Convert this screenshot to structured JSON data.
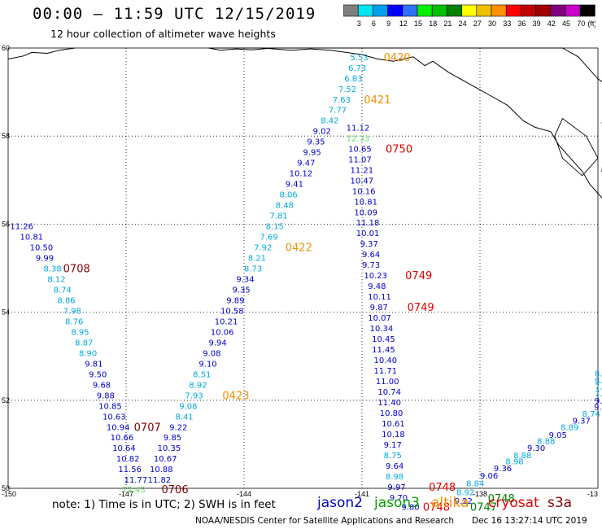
{
  "header": {
    "title": "00:00 – 11:59 UTC 12/15/2019",
    "subtitle": "12 hour collection of altimeter wave heights"
  },
  "colorbar": {
    "labels": [
      "3",
      "6",
      "9",
      "12",
      "15",
      "18",
      "21",
      "24",
      "27",
      "30",
      "33",
      "36",
      "39",
      "42",
      "45",
      "70"
    ],
    "unit": "(ft)",
    "colors": [
      "#808080",
      "#00e5ee",
      "#00a0f0",
      "#0000ff",
      "#3070ff",
      "#00f000",
      "#00c000",
      "#008000",
      "#ffff00",
      "#f0c000",
      "#ff9000",
      "#ff0000",
      "#c00000",
      "#a00000",
      "#800080",
      "#c800c8",
      "#000000"
    ]
  },
  "map": {
    "lat_labels": [
      "60",
      "58",
      "56",
      "54",
      "52",
      "50"
    ],
    "lon_labels": [
      "-150",
      "-147",
      "-144",
      "-141",
      "-138",
      "-13"
    ],
    "lon_min": -150,
    "lon_max": -135,
    "lat_min": 50,
    "lat_max": 60,
    "grid_lons": [
      -147,
      -144,
      -141,
      -138
    ],
    "grid_lats": [
      58,
      56,
      54,
      52
    ],
    "satellite_colors": {
      "jason2": "#0000c8",
      "jason3": "#00a000",
      "altika": "#f09000",
      "cryosat": "#e00000",
      "s3a": "#800000",
      "s3a_light": "#00b0e0",
      "j3_light": "#60e060"
    }
  },
  "annotations": [
    {
      "v": "11.26",
      "c": "#0000c8",
      "lon": -149.95,
      "lat": 55.96
    },
    {
      "v": "10.81",
      "c": "#0000c8",
      "lon": -149.7,
      "lat": 55.72
    },
    {
      "v": "10.50",
      "c": "#0000c8",
      "lon": -149.45,
      "lat": 55.48
    },
    {
      "v": "9.99",
      "c": "#0000c8",
      "lon": -149.3,
      "lat": 55.24
    },
    {
      "v": "8.38",
      "c": "#00a8e0",
      "lon": -149.1,
      "lat": 55.0
    },
    {
      "v": "8.12",
      "c": "#00a8e0",
      "lon": -149.0,
      "lat": 54.76
    },
    {
      "v": "8.74",
      "c": "#00a8e0",
      "lon": -148.85,
      "lat": 54.52
    },
    {
      "v": "8.86",
      "c": "#00a8e0",
      "lon": -148.75,
      "lat": 54.28
    },
    {
      "v": "7.98",
      "c": "#00a8e0",
      "lon": -148.6,
      "lat": 54.04
    },
    {
      "v": "8.76",
      "c": "#00a8e0",
      "lon": -148.55,
      "lat": 53.8
    },
    {
      "v": "8.95",
      "c": "#00a8e0",
      "lon": -148.4,
      "lat": 53.56
    },
    {
      "v": "8.87",
      "c": "#00a8e0",
      "lon": -148.3,
      "lat": 53.32
    },
    {
      "v": "8.90",
      "c": "#00a8e0",
      "lon": -148.2,
      "lat": 53.08
    },
    {
      "v": "9.81",
      "c": "#0000c8",
      "lon": -148.05,
      "lat": 52.84
    },
    {
      "v": "9.50",
      "c": "#0000c8",
      "lon": -147.95,
      "lat": 52.6
    },
    {
      "v": "9.68",
      "c": "#0000c8",
      "lon": -147.85,
      "lat": 52.36
    },
    {
      "v": "9.88",
      "c": "#0000c8",
      "lon": -147.75,
      "lat": 52.12
    },
    {
      "v": "10.85",
      "c": "#0000c8",
      "lon": -147.7,
      "lat": 51.88
    },
    {
      "v": "10.63",
      "c": "#0000c8",
      "lon": -147.6,
      "lat": 51.64
    },
    {
      "v": "10.94",
      "c": "#0000c8",
      "lon": -147.5,
      "lat": 51.4
    },
    {
      "v": "10.66",
      "c": "#0000c8",
      "lon": -147.4,
      "lat": 51.16
    },
    {
      "v": "10.64",
      "c": "#0000c8",
      "lon": -147.35,
      "lat": 50.92
    },
    {
      "v": "10.82",
      "c": "#0000c8",
      "lon": -147.25,
      "lat": 50.68
    },
    {
      "v": "11.56",
      "c": "#0000c8",
      "lon": -147.2,
      "lat": 50.44
    },
    {
      "v": "11.77",
      "c": "#0000c8",
      "lon": -147.05,
      "lat": 50.2
    },
    {
      "v": "12.43",
      "c": "#60e060",
      "lon": -147.1,
      "lat": 49.98
    },
    {
      "v": "11.82",
      "c": "#0000c8",
      "lon": -146.45,
      "lat": 50.2
    },
    {
      "v": "10.88",
      "c": "#0000c8",
      "lon": -146.4,
      "lat": 50.44
    },
    {
      "v": "10.67",
      "c": "#0000c8",
      "lon": -146.3,
      "lat": 50.68
    },
    {
      "v": "10.35",
      "c": "#0000c8",
      "lon": -146.2,
      "lat": 50.92
    },
    {
      "v": "9.85",
      "c": "#0000c8",
      "lon": -146.05,
      "lat": 51.16
    },
    {
      "v": "9.22",
      "c": "#0000c8",
      "lon": -145.9,
      "lat": 51.4
    },
    {
      "v": "8.41",
      "c": "#00a8e0",
      "lon": -145.75,
      "lat": 51.64
    },
    {
      "v": "9.08",
      "c": "#00a8e0",
      "lon": -145.65,
      "lat": 51.88
    },
    {
      "v": "7.93",
      "c": "#00a8e0",
      "lon": -145.5,
      "lat": 52.12
    },
    {
      "v": "8.92",
      "c": "#00a8e0",
      "lon": -145.4,
      "lat": 52.36
    },
    {
      "v": "8.51",
      "c": "#00a8e0",
      "lon": -145.3,
      "lat": 52.6
    },
    {
      "v": "9.10",
      "c": "#0000c8",
      "lon": -145.15,
      "lat": 52.84
    },
    {
      "v": "9.08",
      "c": "#0000c8",
      "lon": -145.05,
      "lat": 53.08
    },
    {
      "v": "9.94",
      "c": "#0000c8",
      "lon": -144.9,
      "lat": 53.32
    },
    {
      "v": "10.06",
      "c": "#0000c8",
      "lon": -144.85,
      "lat": 53.56
    },
    {
      "v": "10.21",
      "c": "#0000c8",
      "lon": -144.75,
      "lat": 53.8
    },
    {
      "v": "10.58",
      "c": "#0000c8",
      "lon": -144.6,
      "lat": 54.04
    },
    {
      "v": "9.89",
      "c": "#0000c8",
      "lon": -144.45,
      "lat": 54.28
    },
    {
      "v": "9.35",
      "c": "#0000c8",
      "lon": -144.3,
      "lat": 54.52
    },
    {
      "v": "9.34",
      "c": "#0000c8",
      "lon": -144.2,
      "lat": 54.76
    },
    {
      "v": "8.73",
      "c": "#00a8e0",
      "lon": -144.0,
      "lat": 55.0
    },
    {
      "v": "8.21",
      "c": "#00a8e0",
      "lon": -143.9,
      "lat": 55.24
    },
    {
      "v": "7.92",
      "c": "#00a8e0",
      "lon": -143.75,
      "lat": 55.48
    },
    {
      "v": "7.69",
      "c": "#00a8e0",
      "lon": -143.6,
      "lat": 55.72
    },
    {
      "v": "8.15",
      "c": "#00a8e0",
      "lon": -143.45,
      "lat": 55.96
    },
    {
      "v": "7.81",
      "c": "#00a8e0",
      "lon": -143.35,
      "lat": 56.2
    },
    {
      "v": "8.48",
      "c": "#00a8e0",
      "lon": -143.2,
      "lat": 56.44
    },
    {
      "v": "8.06",
      "c": "#00a8e0",
      "lon": -143.1,
      "lat": 56.68
    },
    {
      "v": "9.41",
      "c": "#0000c8",
      "lon": -142.95,
      "lat": 56.92
    },
    {
      "v": "10.12",
      "c": "#0000c8",
      "lon": -142.85,
      "lat": 57.16
    },
    {
      "v": "9.47",
      "c": "#0000c8",
      "lon": -142.65,
      "lat": 57.4
    },
    {
      "v": "9.95",
      "c": "#0000c8",
      "lon": -142.5,
      "lat": 57.64
    },
    {
      "v": "9.35",
      "c": "#0000c8",
      "lon": -142.4,
      "lat": 57.88
    },
    {
      "v": "9.02",
      "c": "#0000c8",
      "lon": -142.25,
      "lat": 58.12
    },
    {
      "v": "8.42",
      "c": "#00a8e0",
      "lon": -142.05,
      "lat": 58.36
    },
    {
      "v": "7.77",
      "c": "#00a8e0",
      "lon": -141.85,
      "lat": 58.6
    },
    {
      "v": "7.63",
      "c": "#00a8e0",
      "lon": -141.75,
      "lat": 58.84
    },
    {
      "v": "7.52",
      "c": "#00a8e0",
      "lon": -141.6,
      "lat": 59.08
    },
    {
      "v": "6.83",
      "c": "#00a8e0",
      "lon": -141.45,
      "lat": 59.32
    },
    {
      "v": "6.73",
      "c": "#00a8e0",
      "lon": -141.35,
      "lat": 59.56
    },
    {
      "v": "5.53",
      "c": "#00a8e0",
      "lon": -141.3,
      "lat": 59.8
    },
    {
      "v": "11.12",
      "c": "#0000c8",
      "lon": -141.4,
      "lat": 58.2
    },
    {
      "v": "12.33",
      "c": "#60e060",
      "lon": -141.4,
      "lat": 57.96
    },
    {
      "v": "10.65",
      "c": "#0000c8",
      "lon": -141.35,
      "lat": 57.72
    },
    {
      "v": "11.07",
      "c": "#0000c8",
      "lon": -141.35,
      "lat": 57.48
    },
    {
      "v": "11.21",
      "c": "#0000c8",
      "lon": -141.3,
      "lat": 57.24
    },
    {
      "v": "10.47",
      "c": "#0000c8",
      "lon": -141.3,
      "lat": 57.0
    },
    {
      "v": "10.16",
      "c": "#0000c8",
      "lon": -141.25,
      "lat": 56.76
    },
    {
      "v": "10.81",
      "c": "#0000c8",
      "lon": -141.2,
      "lat": 56.52
    },
    {
      "v": "10.09",
      "c": "#0000c8",
      "lon": -141.2,
      "lat": 56.28
    },
    {
      "v": "11.18",
      "c": "#0000c8",
      "lon": -141.15,
      "lat": 56.04
    },
    {
      "v": "10.01",
      "c": "#0000c8",
      "lon": -141.15,
      "lat": 55.8
    },
    {
      "v": "9.37",
      "c": "#0000c8",
      "lon": -141.05,
      "lat": 55.56
    },
    {
      "v": "9.64",
      "c": "#0000c8",
      "lon": -141.0,
      "lat": 55.32
    },
    {
      "v": "9.73",
      "c": "#0000c8",
      "lon": -141.0,
      "lat": 55.08
    },
    {
      "v": "10.23",
      "c": "#0000c8",
      "lon": -140.95,
      "lat": 54.84
    },
    {
      "v": "9.48",
      "c": "#0000c8",
      "lon": -140.85,
      "lat": 54.6
    },
    {
      "v": "10.11",
      "c": "#0000c8",
      "lon": -140.85,
      "lat": 54.36
    },
    {
      "v": "9.87",
      "c": "#0000c8",
      "lon": -140.8,
      "lat": 54.12
    },
    {
      "v": "10.07",
      "c": "#0000c8",
      "lon": -140.85,
      "lat": 53.88
    },
    {
      "v": "10.34",
      "c": "#0000c8",
      "lon": -140.8,
      "lat": 53.64
    },
    {
      "v": "10.45",
      "c": "#0000c8",
      "lon": -140.75,
      "lat": 53.4
    },
    {
      "v": "11.45",
      "c": "#0000c8",
      "lon": -140.75,
      "lat": 53.16
    },
    {
      "v": "10.40",
      "c": "#0000c8",
      "lon": -140.7,
      "lat": 52.92
    },
    {
      "v": "11.71",
      "c": "#0000c8",
      "lon": -140.7,
      "lat": 52.68
    },
    {
      "v": "11.00",
      "c": "#0000c8",
      "lon": -140.65,
      "lat": 52.44
    },
    {
      "v": "10.74",
      "c": "#0000c8",
      "lon": -140.6,
      "lat": 52.2
    },
    {
      "v": "11.40",
      "c": "#0000c8",
      "lon": -140.6,
      "lat": 51.96
    },
    {
      "v": "10.80",
      "c": "#0000c8",
      "lon": -140.55,
      "lat": 51.72
    },
    {
      "v": "10.61",
      "c": "#0000c8",
      "lon": -140.5,
      "lat": 51.48
    },
    {
      "v": "10.18",
      "c": "#0000c8",
      "lon": -140.5,
      "lat": 51.24
    },
    {
      "v": "9.17",
      "c": "#0000c8",
      "lon": -140.45,
      "lat": 51.0
    },
    {
      "v": "8.75",
      "c": "#00a8e0",
      "lon": -140.45,
      "lat": 50.76
    },
    {
      "v": "9.64",
      "c": "#0000c8",
      "lon": -140.4,
      "lat": 50.52
    },
    {
      "v": "8.98",
      "c": "#00a8e0",
      "lon": -140.4,
      "lat": 50.28
    },
    {
      "v": "9.97",
      "c": "#0000c8",
      "lon": -140.35,
      "lat": 50.04
    },
    {
      "v": "9.70",
      "c": "#0000c8",
      "lon": -140.3,
      "lat": 49.8
    },
    {
      "v": "9.80",
      "c": "#0000c8",
      "lon": -140.0,
      "lat": 49.58
    },
    {
      "v": "9.22",
      "c": "#0000c8",
      "lon": -138.65,
      "lat": 49.72
    },
    {
      "v": "8.92",
      "c": "#00a8e0",
      "lon": -138.6,
      "lat": 49.92
    },
    {
      "v": "8.84",
      "c": "#00a8e0",
      "lon": -138.35,
      "lat": 50.12
    },
    {
      "v": "9.06",
      "c": "#0000c8",
      "lon": -138.0,
      "lat": 50.3
    },
    {
      "v": "9.36",
      "c": "#0000c8",
      "lon": -137.65,
      "lat": 50.46
    },
    {
      "v": "8.98",
      "c": "#00a8e0",
      "lon": -137.35,
      "lat": 50.62
    },
    {
      "v": "8.88",
      "c": "#00a8e0",
      "lon": -137.15,
      "lat": 50.76
    },
    {
      "v": "9.30",
      "c": "#0000c8",
      "lon": -136.8,
      "lat": 50.92
    },
    {
      "v": "8.88",
      "c": "#00a8e0",
      "lon": -136.55,
      "lat": 51.08
    },
    {
      "v": "9.05",
      "c": "#0000c8",
      "lon": -136.25,
      "lat": 51.22
    },
    {
      "v": "8.89",
      "c": "#00a8e0",
      "lon": -135.95,
      "lat": 51.4
    },
    {
      "v": "9.37",
      "c": "#0000c8",
      "lon": -135.65,
      "lat": 51.54
    },
    {
      "v": "8.74",
      "c": "#00a8e0",
      "lon": -135.4,
      "lat": 51.7
    },
    {
      "v": "9.33",
      "c": "#0000c8",
      "lon": -135.1,
      "lat": 51.86
    },
    {
      "v": "9.21",
      "c": "#0000c8",
      "lon": -134.75,
      "lat": 52.0
    },
    {
      "v": "7.46",
      "c": "#00a8e0",
      "lon": -134.45,
      "lat": 52.16
    },
    {
      "v": "7.96",
      "c": "#00a8e0",
      "lon": -134.2,
      "lat": 52.32
    },
    {
      "v": "8.41",
      "c": "#00a8e0",
      "lon": -133.95,
      "lat": 52.46
    },
    {
      "v": "8.",
      "c": "#00a8e0",
      "lon": -133.8,
      "lat": 52.62
    }
  ],
  "times": [
    {
      "v": "0708",
      "c": "#800000",
      "lon": -148.6,
      "lat": 55.0
    },
    {
      "v": "0707",
      "c": "#800000",
      "lon": -146.8,
      "lat": 51.4
    },
    {
      "v": "0706",
      "c": "#800000",
      "lon": -146.1,
      "lat": 49.98
    },
    {
      "v": "0423",
      "c": "#f09000",
      "lon": -144.55,
      "lat": 52.12
    },
    {
      "v": "0422",
      "c": "#f09000",
      "lon": -142.95,
      "lat": 55.48
    },
    {
      "v": "0421",
      "c": "#f09000",
      "lon": -140.95,
      "lat": 58.84
    },
    {
      "v": "0420",
      "c": "#f09000",
      "lon": -140.45,
      "lat": 59.8
    },
    {
      "v": "0750",
      "c": "#e00000",
      "lon": -140.4,
      "lat": 57.72
    },
    {
      "v": "0749",
      "c": "#e00000",
      "lon": -139.9,
      "lat": 54.84
    },
    {
      "v": "0749",
      "c": "#e00000",
      "lon": -139.85,
      "lat": 54.12
    },
    {
      "v": "0748",
      "c": "#e00000",
      "lon": -139.3,
      "lat": 50.04
    },
    {
      "v": "0748",
      "c": "#e00000",
      "lon": -139.45,
      "lat": 49.58
    },
    {
      "v": "0748",
      "c": "#008000",
      "lon": -137.8,
      "lat": 49.78
    },
    {
      "v": "0747",
      "c": "#008000",
      "lon": -138.25,
      "lat": 49.58
    },
    {
      "v": "0",
      "c": "#008000",
      "lon": -133.6,
      "lat": 52.22
    }
  ],
  "footer": {
    "note": "note:  1) Time is in UTC;  2) SWH is in feet",
    "sat_jason2": "jason2",
    "sat_jason3": "jason3",
    "sat_altika": "altika",
    "sat_cryosat": "cryosat",
    "sat_s3a": "s3a",
    "credit": "NOAA/NESDIS Center for Satellite Applications and Research",
    "timestamp": "Dec 16 13:27:14 UTC 2019"
  }
}
